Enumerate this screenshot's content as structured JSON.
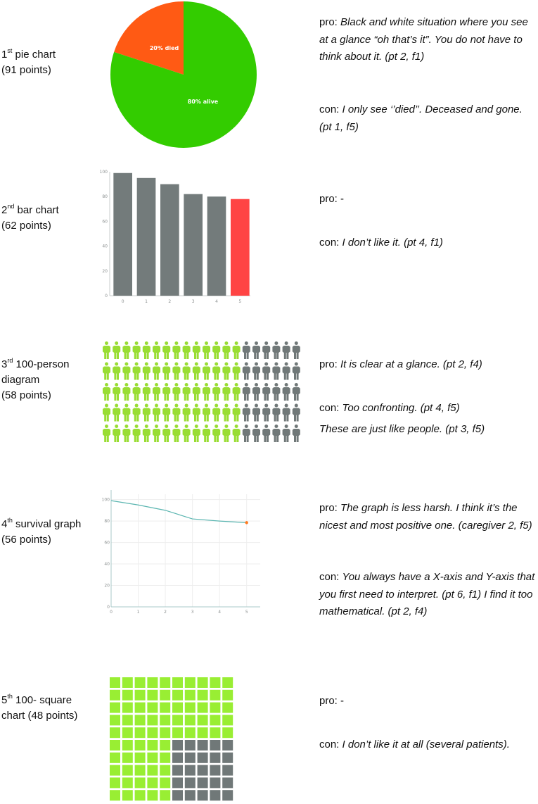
{
  "rows": [
    {
      "ordinal": "1",
      "ordinal_suffix": "st",
      "name": " pie chart",
      "points": "(91 points)",
      "pro_prefix": "pro: ",
      "pro_text": "Black and white situation where you see at a glance  “oh that’s it”. You do not have to think about it. (pt 2, f1)",
      "con_prefix": "con: ",
      "con_text": "I only see ‘’died’’. Deceased and gone. (pt 1, f5)"
    },
    {
      "ordinal": "2",
      "ordinal_suffix": "nd",
      "name": " bar chart",
      "points": "(62 points)",
      "pro_prefix": "pro: ",
      "pro_text": "-",
      "con_prefix": "con:  ",
      "con_text": "I don’t like it. (pt 4, f1)"
    },
    {
      "ordinal": "3",
      "ordinal_suffix": "rd",
      "name": " 100-person",
      "name_line2": "diagram",
      "points": "(58 points)",
      "pro_prefix": "pro: ",
      "pro_text": "It is clear at a glance. (pt 2, f4)",
      "con_prefix": " con: ",
      "con_text": "Too confronting. (pt 4, f5)",
      "extra_text": "These are just like people. (pt 3, f5)"
    },
    {
      "ordinal": "4",
      "ordinal_suffix": "th",
      "name": " survival graph",
      "points": "(56 points)",
      "pro_prefix": "pro: ",
      "pro_text": "The graph is less harsh. I think it’s the nicest and most positive one. (caregiver 2, f5)",
      "con_prefix": "con: ",
      "con_text": "You always have a X-axis and Y-axis that you   first need to interpret. (pt 6, f1) I find it too mathematical. (pt 2, f4)"
    },
    {
      "ordinal": "5",
      "ordinal_suffix": "th",
      "name": " 100- square",
      "name_line2": "chart (48 points)",
      "pro_prefix": "pro: ",
      "pro_text": "-",
      "con_prefix": "con: ",
      "con_text": "I don’t like it at all (several patients)."
    }
  ],
  "chart_data": [
    {
      "type": "pie",
      "labels": [
        "20% died",
        "80% alive"
      ],
      "values": [
        20,
        80
      ],
      "colors": [
        "#ff5a14",
        "#33cc00"
      ]
    },
    {
      "type": "bar",
      "categories": [
        "0",
        "1",
        "2",
        "3",
        "4",
        "5"
      ],
      "values": [
        99,
        95,
        90,
        82,
        80,
        78
      ],
      "colors": [
        "#737b7b",
        "#737b7b",
        "#737b7b",
        "#737b7b",
        "#737b7b",
        "#ff4444"
      ],
      "yticks": [
        "0",
        "20",
        "40",
        "60",
        "80",
        "100"
      ],
      "ylim": [
        0,
        100
      ]
    },
    {
      "type": "pictogram",
      "total": 100,
      "columns": 20,
      "rows": 5,
      "green_columns": 14,
      "colors": {
        "alive": "#99dd33",
        "died": "#707878"
      },
      "icon": "person-icon"
    },
    {
      "type": "line",
      "x": [
        0,
        1,
        2,
        3,
        4,
        5
      ],
      "y": [
        99,
        95,
        90,
        82,
        80,
        78.5
      ],
      "xticks": [
        "0",
        "1",
        "2",
        "3",
        "4",
        "5"
      ],
      "yticks": [
        "0",
        "20",
        "40",
        "60",
        "80",
        "100"
      ],
      "ylim": [
        0,
        105
      ],
      "xlim": [
        0,
        5.5
      ],
      "line_color": "#5ab5b0",
      "end_marker_color": "#ff7a20",
      "grid": true
    },
    {
      "type": "waffle",
      "total": 100,
      "columns": 10,
      "rows": 10,
      "colors": {
        "alive": "#99ee33",
        "died": "#707878"
      },
      "died_region": "bottom-right 5 rows x 5 columns"
    }
  ]
}
